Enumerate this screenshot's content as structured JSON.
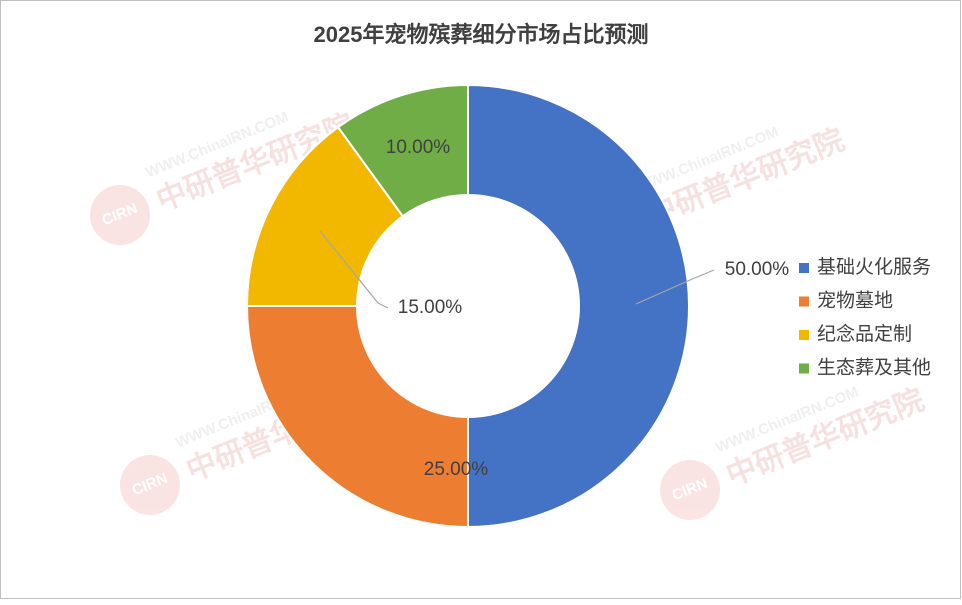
{
  "chart_data": {
    "type": "donut",
    "title": "2025年宠物殡葬细分市场占比预测",
    "categories": [
      "基础火化服务",
      "宠物墓地",
      "纪念品定制",
      "生态葬及其他"
    ],
    "values": [
      50,
      25,
      15,
      10
    ],
    "value_labels": [
      "50.00%",
      "25.00%",
      "15.00%",
      "10.00%"
    ],
    "colors": [
      "#4472c4",
      "#ed7d31",
      "#f2b800",
      "#70ad47"
    ],
    "legend": "right",
    "watermark": {
      "logo": "CIRN",
      "url": "WWW.ChinaIRN.COM",
      "name": "中研普华研究院"
    }
  }
}
